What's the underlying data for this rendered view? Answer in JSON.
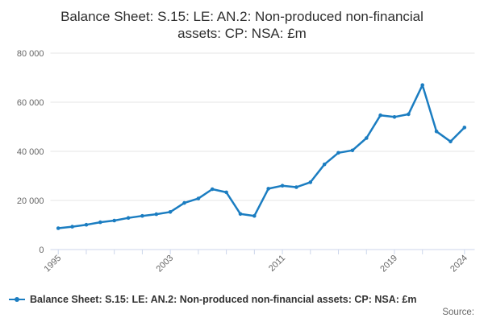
{
  "title": {
    "line1": "Balance Sheet: S.15: LE: AN.2: Non-produced non-financial",
    "line2": "assets: CP: NSA: £m"
  },
  "legend": {
    "label": "Balance Sheet: S.15: LE: AN.2: Non-produced non-financial assets: CP: NSA: £m",
    "marker_icon": "line-with-round-marker"
  },
  "footer": {
    "source_label": "Source:"
  },
  "colors": {
    "series": "#1b7dc1",
    "grid": "#e6e6e6",
    "axis": "#ccd6eb",
    "tick_text": "#666666",
    "title_text": "#2e2e2e",
    "legend_text": "#333333"
  },
  "chart_data": {
    "type": "line",
    "title": "Balance Sheet: S.15: LE: AN.2: Non-produced non-financial assets: CP: NSA: £m",
    "xlabel": "",
    "ylabel": "",
    "xlim": [
      1994.44,
      2024.73
    ],
    "ylim": [
      0,
      80000
    ],
    "grid": "horizontal-only",
    "legend_position": "bottom-left",
    "marker": "circle",
    "y_ticks": [
      {
        "value": 0,
        "label": "0"
      },
      {
        "value": 20000,
        "label": "20 000"
      },
      {
        "value": 40000,
        "label": "40 000"
      },
      {
        "value": 60000,
        "label": "60 000"
      },
      {
        "value": 80000,
        "label": "80 000"
      }
    ],
    "x_tick_years": [
      1995,
      1997,
      1999,
      2001,
      2003,
      2005,
      2007,
      2009,
      2011,
      2013,
      2015,
      2017,
      2019,
      2021,
      2024
    ],
    "x_labeled_ticks": [
      {
        "year": 1995,
        "label": "1995"
      },
      {
        "year": 2003,
        "label": "2003"
      },
      {
        "year": 2011,
        "label": "2011"
      },
      {
        "year": 2019,
        "label": "2019"
      },
      {
        "year": 2024,
        "label": "2024"
      }
    ],
    "series": [
      {
        "name": "Balance Sheet: S.15: LE: AN.2: Non-produced non-financial assets: CP: NSA: £m",
        "x": [
          1995,
          1996,
          1997,
          1998,
          1999,
          2000,
          2001,
          2002,
          2003,
          2004,
          2005,
          2006,
          2007,
          2008,
          2009,
          2010,
          2011,
          2012,
          2013,
          2014,
          2015,
          2016,
          2017,
          2018,
          2019,
          2020,
          2021,
          2022,
          2023,
          2024
        ],
        "values": [
          8700,
          9300,
          10100,
          11100,
          11800,
          12900,
          13700,
          14400,
          15300,
          19000,
          20800,
          24600,
          23300,
          14500,
          13700,
          24800,
          26000,
          25400,
          27400,
          34700,
          39400,
          40400,
          45400,
          54700,
          54000,
          55100,
          67000,
          48100,
          44000,
          49700
        ]
      }
    ]
  }
}
